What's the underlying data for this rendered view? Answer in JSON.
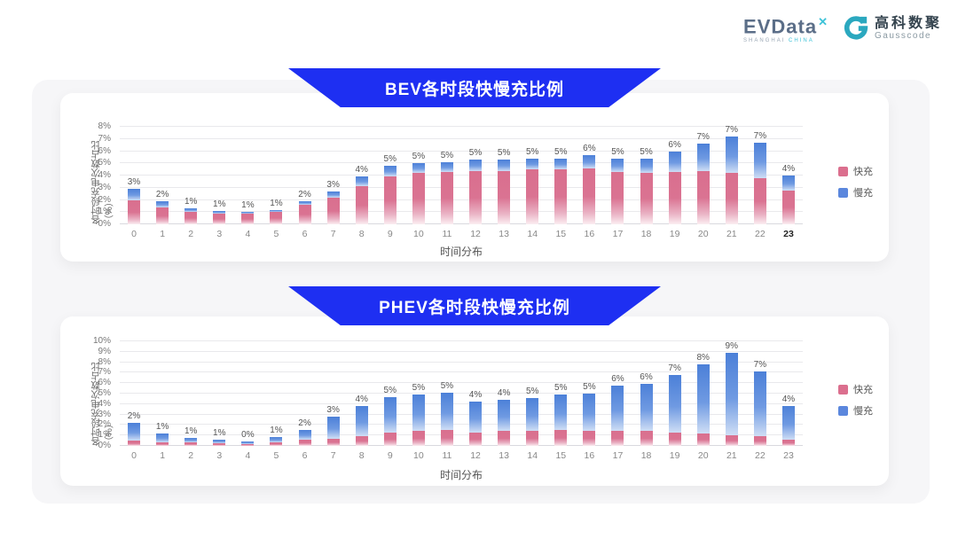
{
  "header": {
    "evdata": {
      "text": "EVData",
      "superscript": "✕",
      "sub_left": "SHANGHAI",
      "sub_right": "CHINA"
    },
    "gausscode": {
      "cn": "高科数聚",
      "en": "Gausscode",
      "icon_color": "#2ba8bf"
    }
  },
  "colors": {
    "banner": "#1e2ff2",
    "fast": "#db6f8e",
    "slow": "#5b87dd",
    "panel": "#f6f6f8"
  },
  "chart_data": [
    {
      "type": "bar",
      "stacked": true,
      "title": "BEV各时段快慢充比例",
      "xlabel": "时间分布",
      "ylabel": "各时段充电次数占比（%）",
      "ylim": [
        0,
        8
      ],
      "ytick_step": 1,
      "grid": true,
      "legend_position": "right",
      "categories": [
        "0",
        "1",
        "2",
        "3",
        "4",
        "5",
        "6",
        "7",
        "8",
        "9",
        "10",
        "11",
        "12",
        "13",
        "14",
        "15",
        "16",
        "17",
        "18",
        "19",
        "20",
        "21",
        "22",
        "23"
      ],
      "x_emphasis": "23",
      "series": [
        {
          "name": "快充",
          "color": "#db6f8e",
          "values": [
            2.0,
            1.4,
            1.0,
            0.9,
            0.9,
            1.0,
            1.6,
            2.2,
            3.1,
            3.9,
            4.2,
            4.3,
            4.4,
            4.4,
            4.5,
            4.5,
            4.6,
            4.3,
            4.2,
            4.3,
            4.4,
            4.2,
            3.8,
            2.8
          ]
        },
        {
          "name": "慢充",
          "color": "#5b87dd",
          "values": [
            0.9,
            0.5,
            0.3,
            0.2,
            0.1,
            0.2,
            0.3,
            0.5,
            0.8,
            0.9,
            0.8,
            0.8,
            0.9,
            0.9,
            0.9,
            0.9,
            1.1,
            1.1,
            1.2,
            1.7,
            2.2,
            3.0,
            2.9,
            1.2
          ]
        }
      ],
      "bar_labels": [
        "3%",
        "2%",
        "1%",
        "1%",
        "1%",
        "1%",
        "2%",
        "3%",
        "4%",
        "5%",
        "5%",
        "5%",
        "5%",
        "5%",
        "5%",
        "5%",
        "6%",
        "5%",
        "5%",
        "6%",
        "7%",
        "7%",
        "7%",
        "4%"
      ]
    },
    {
      "type": "bar",
      "stacked": true,
      "title": "PHEV各时段快慢充比例",
      "xlabel": "时间分布",
      "ylabel": "各时段充电次数占比（%）",
      "ylim": [
        0,
        10
      ],
      "ytick_step": 1,
      "grid": true,
      "legend_position": "right",
      "categories": [
        "0",
        "1",
        "2",
        "3",
        "4",
        "5",
        "6",
        "7",
        "8",
        "9",
        "10",
        "11",
        "12",
        "13",
        "14",
        "15",
        "16",
        "17",
        "18",
        "19",
        "20",
        "21",
        "22",
        "23"
      ],
      "x_emphasis": "",
      "series": [
        {
          "name": "快充",
          "color": "#db6f8e",
          "values": [
            0.5,
            0.35,
            0.3,
            0.25,
            0.2,
            0.3,
            0.6,
            0.7,
            0.9,
            1.3,
            1.4,
            1.5,
            1.3,
            1.4,
            1.4,
            1.5,
            1.4,
            1.4,
            1.4,
            1.3,
            1.2,
            1.0,
            0.9,
            0.6
          ]
        },
        {
          "name": "慢充",
          "color": "#5b87dd",
          "values": [
            1.7,
            0.85,
            0.5,
            0.35,
            0.25,
            0.55,
            0.9,
            2.1,
            2.9,
            3.4,
            3.5,
            3.6,
            2.9,
            3.0,
            3.2,
            3.4,
            3.6,
            4.4,
            4.5,
            5.5,
            6.6,
            7.9,
            6.2,
            3.2
          ]
        }
      ],
      "bar_labels": [
        "2%",
        "1%",
        "1%",
        "1%",
        "0%",
        "1%",
        "2%",
        "3%",
        "4%",
        "5%",
        "5%",
        "5%",
        "4%",
        "4%",
        "5%",
        "5%",
        "5%",
        "6%",
        "6%",
        "7%",
        "8%",
        "9%",
        "7%",
        "4%"
      ]
    }
  ]
}
